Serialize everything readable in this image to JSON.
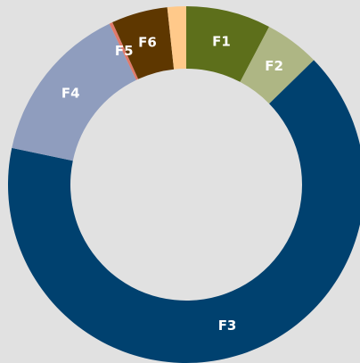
{
  "chart_data": {
    "type": "donut",
    "categories": [
      "F1",
      "F2",
      "F3",
      "F4",
      "F5",
      "F6",
      null
    ],
    "values": [
      7.7,
      5.0,
      65.6,
      14.6,
      0.3,
      5.1,
      1.7
    ],
    "colors": [
      "#5d6f1b",
      "#aeb684",
      "#00416f",
      "#8f9dbe",
      "#e07a6a",
      "#5e3700",
      "#ffc98a"
    ]
  }
}
